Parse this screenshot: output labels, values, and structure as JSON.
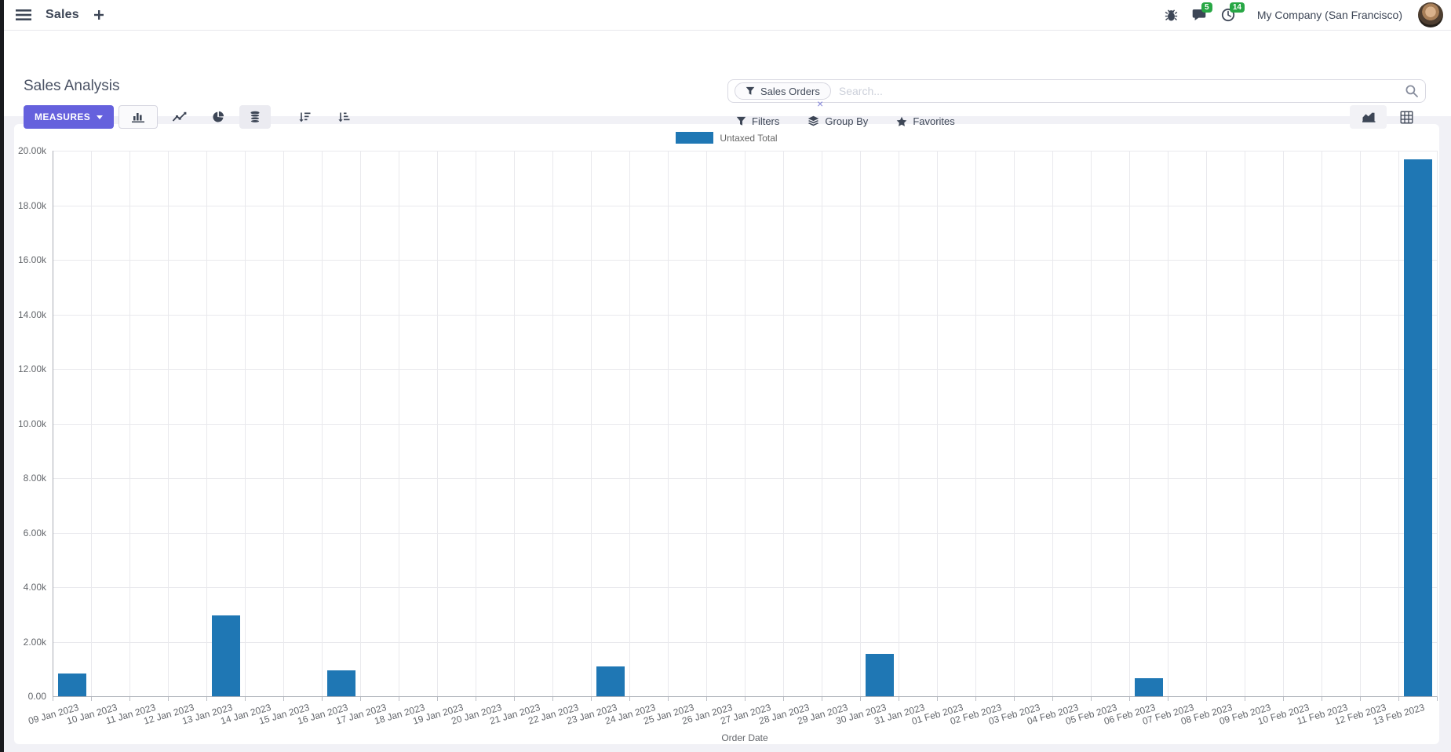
{
  "navbar": {
    "app_label": "Sales",
    "messages_badge": "5",
    "activities_badge": "14",
    "company": "My Company (San Francisco)"
  },
  "control_panel": {
    "title": "Sales Analysis",
    "measures_label": "MEASURES",
    "search": {
      "facet": "Sales Orders",
      "placeholder": "Search...",
      "facet_remove": "×"
    },
    "filters_label": "Filters",
    "group_by_label": "Group By",
    "favorites_label": "Favorites"
  },
  "colors": {
    "accent": "#6561DD",
    "bar_blue": "#1f77b4",
    "badge_green": "#28a745"
  },
  "chart_data": {
    "type": "bar",
    "title": "",
    "xlabel": "Order Date",
    "ylabel": "",
    "ylim": [
      0,
      20000
    ],
    "grid": true,
    "legend_position": "top",
    "legend": [
      "Untaxed Total"
    ],
    "y_ticks": [
      "20.00k",
      "18.00k",
      "16.00k",
      "14.00k",
      "12.00k",
      "10.00k",
      "8.00k",
      "6.00k",
      "4.00k",
      "2.00k",
      "0.00"
    ],
    "categories": [
      "09 Jan 2023",
      "10 Jan 2023",
      "11 Jan 2023",
      "12 Jan 2023",
      "13 Jan 2023",
      "14 Jan 2023",
      "15 Jan 2023",
      "16 Jan 2023",
      "17 Jan 2023",
      "18 Jan 2023",
      "19 Jan 2023",
      "20 Jan 2023",
      "21 Jan 2023",
      "22 Jan 2023",
      "23 Jan 2023",
      "24 Jan 2023",
      "25 Jan 2023",
      "26 Jan 2023",
      "27 Jan 2023",
      "28 Jan 2023",
      "29 Jan 2023",
      "30 Jan 2023",
      "31 Jan 2023",
      "01 Feb 2023",
      "02 Feb 2023",
      "03 Feb 2023",
      "04 Feb 2023",
      "05 Feb 2023",
      "06 Feb 2023",
      "07 Feb 2023",
      "08 Feb 2023",
      "09 Feb 2023",
      "10 Feb 2023",
      "11 Feb 2023",
      "12 Feb 2023",
      "13 Feb 2023"
    ],
    "series": [
      {
        "name": "Untaxed Total",
        "color": "#1f77b4",
        "values": [
          830,
          0,
          0,
          0,
          2960,
          0,
          0,
          950,
          0,
          0,
          0,
          0,
          0,
          0,
          1090,
          0,
          0,
          0,
          0,
          0,
          0,
          1550,
          0,
          0,
          0,
          0,
          0,
          0,
          660,
          0,
          0,
          0,
          0,
          0,
          0,
          19680
        ]
      }
    ]
  }
}
